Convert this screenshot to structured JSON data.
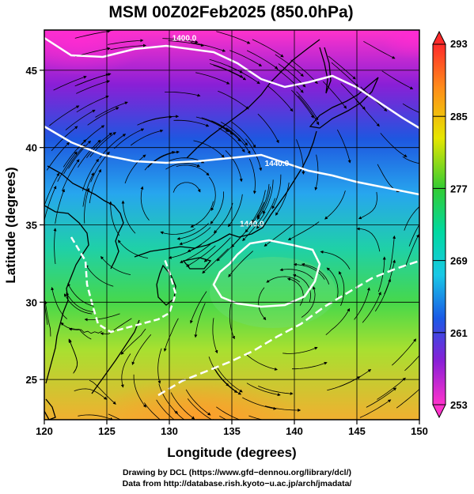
{
  "title": "MSM 00Z02Feb2025 (850.0hPa)",
  "x_axis": {
    "label": "Longitude (degrees)",
    "range": [
      120,
      150
    ],
    "ticks": [
      120,
      125,
      130,
      135,
      140,
      145,
      150
    ]
  },
  "y_axis": {
    "label": "Latitude  (degrees)",
    "range": [
      22.4,
      47.6
    ],
    "ticks": [
      25,
      30,
      35,
      40,
      45
    ]
  },
  "colorbar": {
    "min": 253,
    "max": 293,
    "ticks": [
      253,
      261,
      269,
      277,
      285,
      293
    ]
  },
  "contours": [
    {
      "label": "1400.0",
      "lon": 131.2,
      "lat": 46.9
    },
    {
      "label": "1440.0",
      "lon": 138.6,
      "lat": 38.8
    },
    {
      "label": "1440.0",
      "lon": 136.6,
      "lat": 34.9
    }
  ],
  "colors": {
    "land_outline": "#000000",
    "contour": "#ffffff",
    "streamline": "#000000"
  },
  "credits": {
    "line1": "Drawing by DCL (https://www.gfd−dennou.org/library/dcl/)",
    "line2": "Data from http://database.rish.kyoto−u.ac.jp/arch/jmadata/"
  }
}
